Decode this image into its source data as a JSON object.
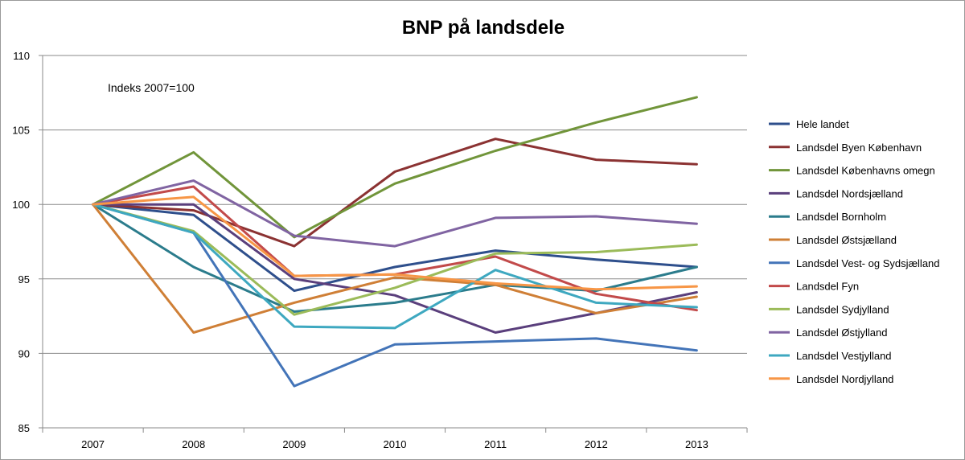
{
  "chart_data": {
    "type": "line",
    "title": "BNP på landsdele",
    "annotation": "Indeks 2007=100",
    "xlabel": "",
    "ylabel": "",
    "categories": [
      "2007",
      "2008",
      "2009",
      "2010",
      "2011",
      "2012",
      "2013"
    ],
    "ylim": [
      85,
      110
    ],
    "yticks": [
      85,
      90,
      95,
      100,
      105,
      110
    ],
    "grid": true,
    "legend_position": "right",
    "series": [
      {
        "name": "Hele landet",
        "color": "#2e4f8c",
        "values": [
          100,
          99.3,
          94.2,
          95.8,
          96.9,
          96.3,
          95.8
        ]
      },
      {
        "name": "Landsdel Byen København",
        "color": "#8b3232",
        "values": [
          100,
          99.6,
          97.2,
          102.2,
          104.4,
          103.0,
          102.7
        ]
      },
      {
        "name": "Landsdel Københavns omegn",
        "color": "#71953a",
        "values": [
          100,
          103.5,
          97.8,
          101.4,
          103.6,
          105.5,
          107.2
        ]
      },
      {
        "name": "Landsdel Nordsjælland",
        "color": "#5a3f7c",
        "values": [
          100,
          100.0,
          95.0,
          93.9,
          91.4,
          92.7,
          94.1
        ]
      },
      {
        "name": "Landsdel Bornholm",
        "color": "#2b7c8c",
        "values": [
          100,
          95.8,
          92.8,
          93.4,
          94.6,
          94.2,
          95.8
        ]
      },
      {
        "name": "Landsdel Østsjælland",
        "color": "#cf7f36",
        "values": [
          100,
          91.4,
          93.4,
          95.1,
          94.6,
          92.7,
          93.8
        ]
      },
      {
        "name": "Landsdel Vest- og Sydsjælland",
        "color": "#4374b8",
        "values": [
          100,
          98.1,
          87.8,
          90.6,
          90.8,
          91.0,
          90.2
        ]
      },
      {
        "name": "Landsdel Fyn",
        "color": "#c24a4a",
        "values": [
          100,
          101.2,
          95.2,
          95.3,
          96.5,
          94.0,
          92.9
        ]
      },
      {
        "name": "Landsdel Sydjylland",
        "color": "#9bbb59",
        "values": [
          100,
          98.2,
          92.6,
          94.4,
          96.7,
          96.8,
          97.3
        ]
      },
      {
        "name": "Landsdel Østjylland",
        "color": "#8064a2",
        "values": [
          100,
          101.6,
          97.9,
          97.2,
          99.1,
          99.2,
          98.7
        ]
      },
      {
        "name": "Landsdel Vestjylland",
        "color": "#3ea8c0",
        "values": [
          100,
          98.1,
          91.8,
          91.7,
          95.6,
          93.4,
          93.1
        ]
      },
      {
        "name": "Landsdel Nordjylland",
        "color": "#f79646",
        "values": [
          100,
          100.5,
          95.2,
          95.3,
          94.7,
          94.3,
          94.5
        ]
      }
    ]
  }
}
